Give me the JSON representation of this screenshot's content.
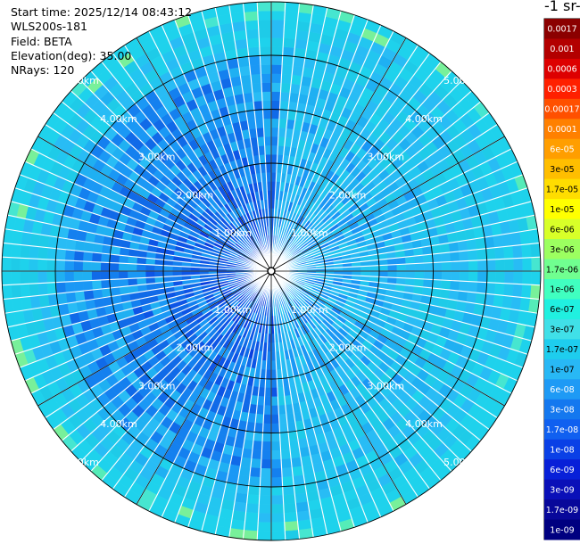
{
  "info": {
    "start_time": "Start time: 2025/12/14 08:43:12",
    "device": "WLS200s-181",
    "field": "Field: BETA",
    "elevation": "Elevation(deg): 35.00",
    "nrays": "NRays: 120"
  },
  "chart_data": {
    "type": "heatmap",
    "projection": "polar",
    "title": "",
    "colorbar": {
      "title": "-1 sr-",
      "ticks": [
        "0.0017",
        "0.001",
        "0.0006",
        "0.0003",
        "0.00017",
        "0.0001",
        "6e-05",
        "3e-05",
        "1.7e-05",
        "1e-05",
        "6e-06",
        "3e-06",
        "1.7e-06",
        "1e-06",
        "6e-07",
        "3e-07",
        "1.7e-07",
        "1e-07",
        "6e-08",
        "3e-08",
        "1.7e-08",
        "1e-08",
        "6e-09",
        "3e-09",
        "1.7e-09",
        "1e-09"
      ],
      "colors": [
        "#8b0000",
        "#b30000",
        "#dd0000",
        "#ff2000",
        "#ff5000",
        "#ff8000",
        "#ff9e00",
        "#ffbe00",
        "#ffdd00",
        "#ffff00",
        "#d8ff28",
        "#9cff60",
        "#70ff90",
        "#40ffc0",
        "#20f0e0",
        "#40e0e8",
        "#1ecdee",
        "#28b8f5",
        "#1e9af5",
        "#1478ef",
        "#1060f0",
        "#0a40e6",
        "#0820d8",
        "#0a10b8",
        "#08089a",
        "#000080"
      ]
    },
    "range_rings_km": [
      1,
      2,
      3,
      4,
      5
    ],
    "range_labels": [
      "1.00km",
      "2.00km",
      "3.00km",
      "4.00km",
      "5.00km"
    ],
    "n_rays": 120,
    "elevation_deg": 35.0,
    "field": "BETA",
    "typical_value_range": [
      "1e-09",
      "1.7e-07"
    ]
  }
}
